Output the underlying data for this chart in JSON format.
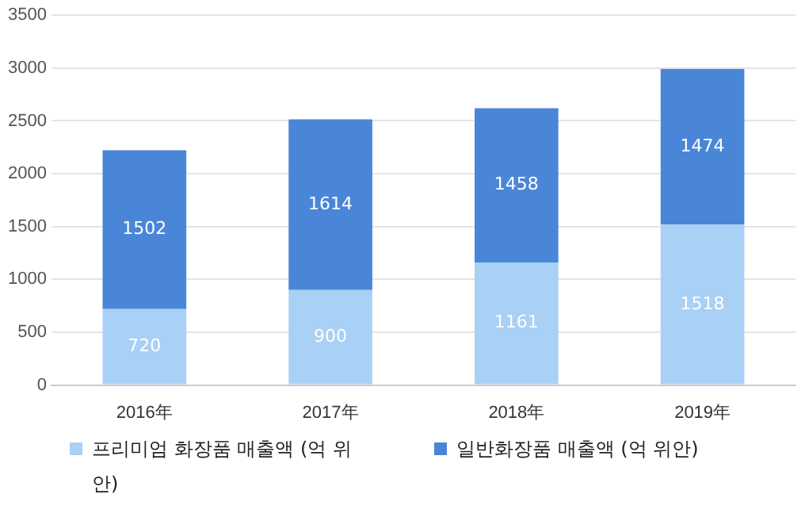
{
  "chart_data": {
    "type": "bar",
    "stacked": true,
    "categories": [
      "2016年",
      "2017年",
      "2018年",
      "2019年"
    ],
    "series": [
      {
        "name": "프리미엄 화장품 매출액 (억 위안)",
        "color": "#a9d0f5",
        "values": [
          720,
          900,
          1161,
          1518
        ]
      },
      {
        "name": "일반화장품 매출액 (억 위안)",
        "color": "#4a86d8",
        "values": [
          1502,
          1614,
          1458,
          1474
        ]
      }
    ],
    "ylim": [
      0,
      3500
    ],
    "yticks": [
      0,
      500,
      1000,
      1500,
      2000,
      2500,
      3000,
      3500
    ],
    "grid": "y",
    "legend": "bottom",
    "data_labels": true
  }
}
